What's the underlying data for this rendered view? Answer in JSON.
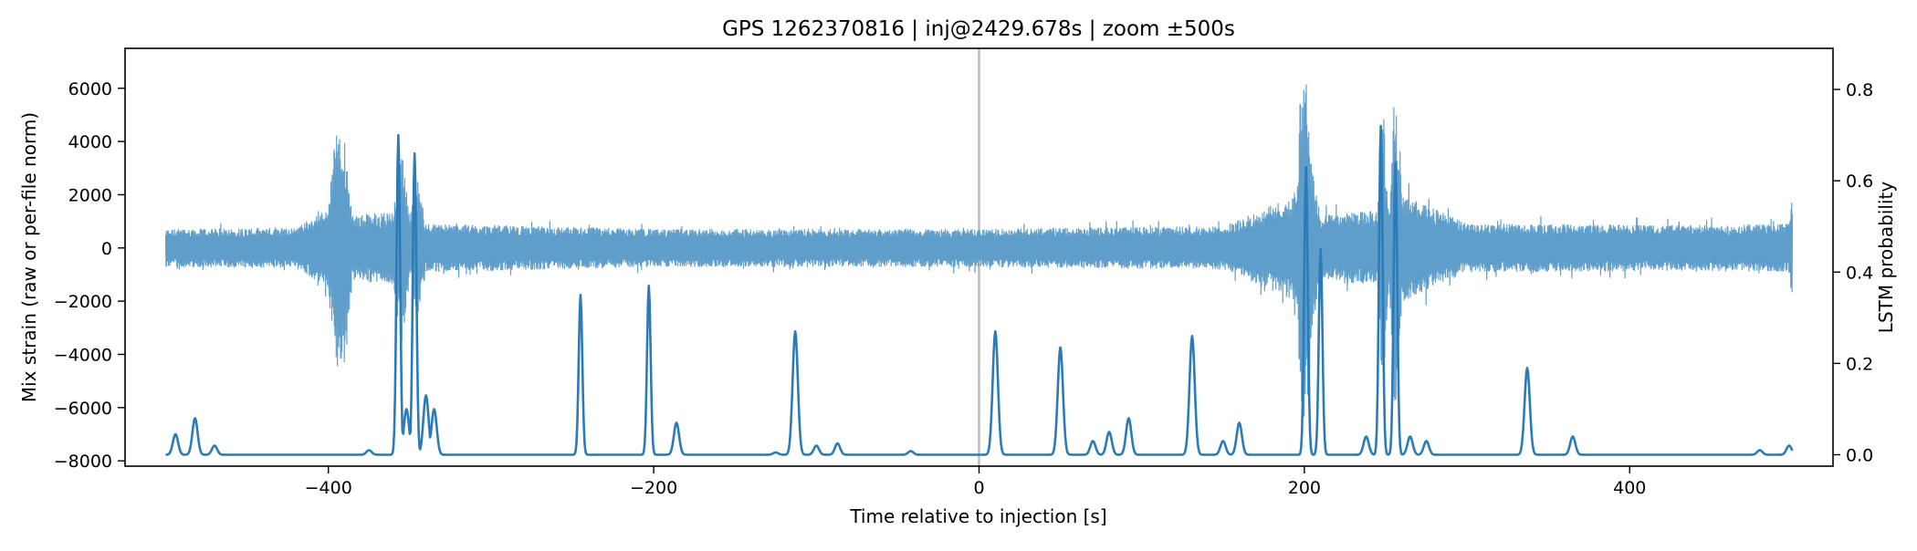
{
  "chart_data": {
    "type": "line",
    "title": "GPS 1262370816 | inj@2429.678s | zoom ±500s",
    "xlabel": "Time relative to injection [s]",
    "ylabel_left": "Mix strain (raw or per-file norm)",
    "ylabel_right": "LSTM probability",
    "xlim": [
      -525,
      525
    ],
    "ylim_left": [
      -8200,
      7500
    ],
    "ylim_right": [
      -0.025,
      0.89
    ],
    "x_ticks": [
      -400,
      -200,
      0,
      200,
      400
    ],
    "x_tick_labels": [
      "−400",
      "−200",
      "0",
      "200",
      "400"
    ],
    "y_left_ticks": [
      6000,
      4000,
      2000,
      0,
      -2000,
      -4000,
      -6000,
      -8000
    ],
    "y_left_tick_labels": [
      "6000",
      "4000",
      "2000",
      "0",
      "−2000",
      "−4000",
      "−6000",
      "−8000"
    ],
    "y_right_ticks": [
      0.8,
      0.6,
      0.4,
      0.2,
      0.0
    ],
    "y_right_tick_labels": [
      "0.8",
      "0.6",
      "0.4",
      "0.2",
      "0.0"
    ],
    "injection_marker_x": 0,
    "grid": false,
    "colors": {
      "strain": "#5f9ecb",
      "lstm": "#2b7bb9",
      "marker": "#bbbbbb"
    },
    "series": [
      {
        "axis": "left",
        "x_range": [
          -500,
          500
        ],
        "noise_half_width": 650,
        "envelope": [
          [
            -500,
            700
          ],
          [
            -420,
            750
          ],
          [
            -400,
            1500
          ],
          [
            -395,
            4800
          ],
          [
            -390,
            4000
          ],
          [
            -385,
            1200
          ],
          [
            -360,
            1400
          ],
          [
            -355,
            3900
          ],
          [
            -350,
            1200
          ],
          [
            -345,
            2500
          ],
          [
            -340,
            900
          ],
          [
            -200,
            700
          ],
          [
            0,
            700
          ],
          [
            150,
            800
          ],
          [
            195,
            2000
          ],
          [
            198,
            6400
          ],
          [
            201,
            6800
          ],
          [
            205,
            3000
          ],
          [
            210,
            1200
          ],
          [
            245,
            1400
          ],
          [
            248,
            5900
          ],
          [
            252,
            1400
          ],
          [
            256,
            6800
          ],
          [
            260,
            2000
          ],
          [
            300,
            900
          ],
          [
            450,
            850
          ],
          [
            498,
            900
          ],
          [
            500,
            2200
          ]
        ]
      },
      {
        "axis": "right",
        "baseline": 0.0,
        "peaks": [
          [
            -494,
            0.045
          ],
          [
            -482,
            0.08
          ],
          [
            -470,
            0.02
          ],
          [
            -375,
            0.01
          ],
          [
            -357,
            0.7
          ],
          [
            -352,
            0.1
          ],
          [
            -347,
            0.66
          ],
          [
            -340,
            0.13
          ],
          [
            -335,
            0.1
          ],
          [
            -245,
            0.35
          ],
          [
            -203,
            0.37
          ],
          [
            -186,
            0.07
          ],
          [
            -125,
            0.005
          ],
          [
            -113,
            0.27
          ],
          [
            -100,
            0.02
          ],
          [
            -87,
            0.025
          ],
          [
            -42,
            0.008
          ],
          [
            10,
            0.27
          ],
          [
            50,
            0.235
          ],
          [
            70,
            0.03
          ],
          [
            80,
            0.05
          ],
          [
            92,
            0.08
          ],
          [
            131,
            0.26
          ],
          [
            150,
            0.03
          ],
          [
            160,
            0.07
          ],
          [
            201,
            0.63
          ],
          [
            210,
            0.45
          ],
          [
            238,
            0.04
          ],
          [
            247,
            0.72
          ],
          [
            256,
            0.64
          ],
          [
            265,
            0.04
          ],
          [
            275,
            0.03
          ],
          [
            337,
            0.19
          ],
          [
            365,
            0.04
          ],
          [
            480,
            0.01
          ],
          [
            498,
            0.02
          ]
        ]
      }
    ]
  }
}
